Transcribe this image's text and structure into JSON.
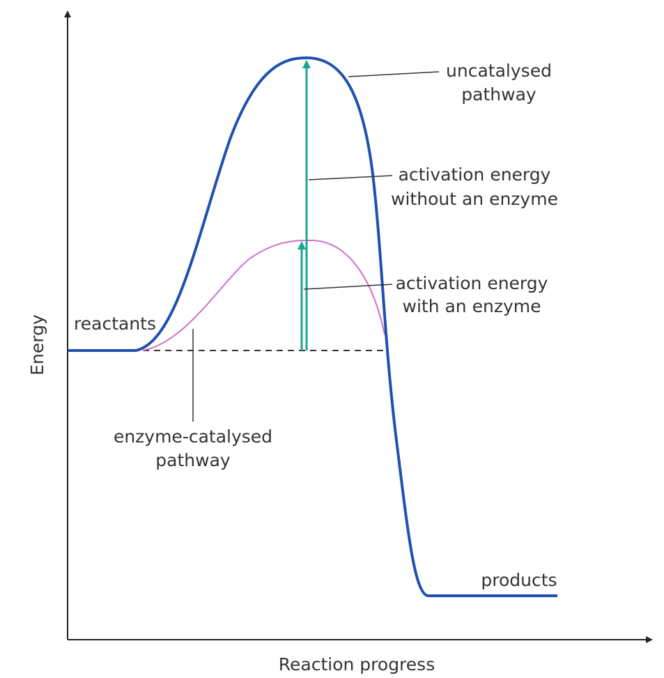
{
  "axes": {
    "y_label": "Energy",
    "x_label": "Reaction progress"
  },
  "labels": {
    "uncatalysed_pathway": [
      "uncatalysed",
      "pathway"
    ],
    "activation_without_enzyme": [
      "activation energy",
      "without an enzyme"
    ],
    "activation_with_enzyme": [
      "activation energy",
      "with an enzyme"
    ],
    "reactants": "reactants",
    "enzyme_catalysed_pathway": [
      "enzyme-catalysed",
      "pathway"
    ],
    "products": "products"
  }
}
